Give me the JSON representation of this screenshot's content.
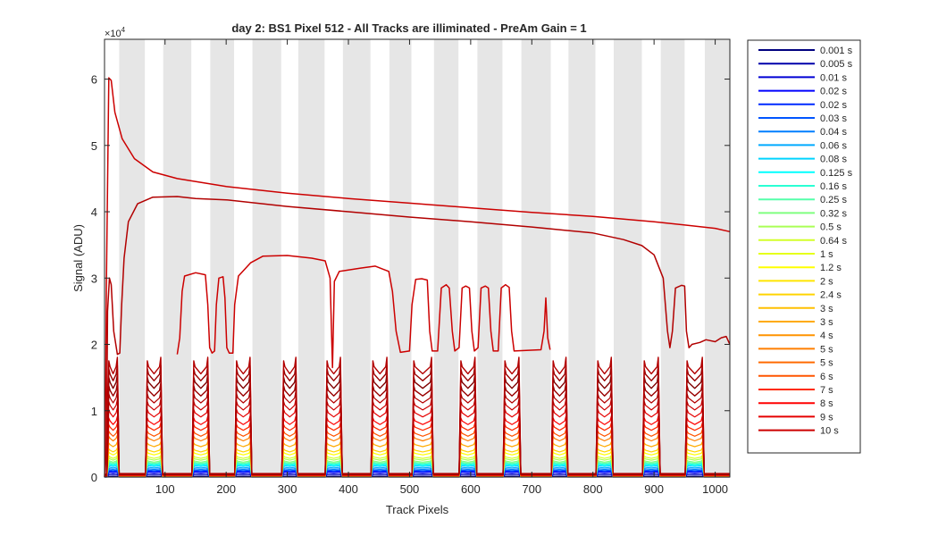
{
  "chart_data": {
    "type": "line",
    "title": "day 2: BS1  Pixel 512 - All Tracks are illiminated - PreAm Gain = 1",
    "xlabel": "Track Pixels",
    "ylabel": "Signal (ADU)",
    "y_exponent_label": "×10",
    "y_exponent": "4",
    "xlim": [
      1,
      1024
    ],
    "ylim": [
      0,
      66000
    ],
    "x_ticks": [
      100,
      200,
      300,
      400,
      500,
      600,
      700,
      800,
      900,
      1000
    ],
    "y_ticks": [
      0,
      1,
      2,
      3,
      4,
      5,
      6
    ],
    "y_tick_labels": [
      "0",
      "1",
      "2",
      "3",
      "4",
      "5",
      "6"
    ],
    "grid": false,
    "legend_position": "outside-right",
    "shaded_bands": [
      [
        25,
        67
      ],
      [
        97,
        143
      ],
      [
        174,
        213
      ],
      [
        243,
        290
      ],
      [
        318,
        361
      ],
      [
        391,
        436
      ],
      [
        467,
        503
      ],
      [
        540,
        580
      ],
      [
        611,
        652
      ],
      [
        683,
        731
      ],
      [
        760,
        804
      ],
      [
        834,
        880
      ],
      [
        911,
        950
      ],
      [
        983,
        1024
      ]
    ],
    "tracks": [
      {
        "start": 5,
        "end": 25
      },
      {
        "start": 68,
        "end": 96
      },
      {
        "start": 144,
        "end": 173
      },
      {
        "start": 214,
        "end": 242
      },
      {
        "start": 291,
        "end": 317
      },
      {
        "start": 362,
        "end": 390
      },
      {
        "start": 437,
        "end": 466
      },
      {
        "start": 504,
        "end": 539
      },
      {
        "start": 581,
        "end": 610
      },
      {
        "start": 653,
        "end": 682
      },
      {
        "start": 732,
        "end": 759
      },
      {
        "start": 805,
        "end": 833
      },
      {
        "start": 881,
        "end": 910
      },
      {
        "start": 951,
        "end": 982
      }
    ],
    "series": [
      {
        "name": "0.001 s",
        "color": "#00007f",
        "plateau": 60
      },
      {
        "name": "0.005 s",
        "color": "#0000aa",
        "plateau": 300
      },
      {
        "name": "0.01 s",
        "color": "#0000d4",
        "plateau": 550
      },
      {
        "name": "0.02 s",
        "color": "#0000ff",
        "plateau": 800
      },
      {
        "name": "0.02 s",
        "color": "#002aff",
        "plateau": 950
      },
      {
        "name": "0.03 s",
        "color": "#0055ff",
        "plateau": 1100
      },
      {
        "name": "0.04 s",
        "color": "#007fff",
        "plateau": 1300
      },
      {
        "name": "0.06 s",
        "color": "#00aaff",
        "plateau": 1550
      },
      {
        "name": "0.08 s",
        "color": "#00d4ff",
        "plateau": 1800
      },
      {
        "name": "0.125 s",
        "color": "#00ffff",
        "plateau": 2000
      },
      {
        "name": "0.16 s",
        "color": "#2affd4",
        "plateau": 2150
      },
      {
        "name": "0.25 s",
        "color": "#55ffaa",
        "plateau": 2350
      },
      {
        "name": "0.32 s",
        "color": "#7fff7f",
        "plateau": 2550
      },
      {
        "name": "0.5 s",
        "color": "#aaff55",
        "plateau": 2900
      },
      {
        "name": "0.64 s",
        "color": "#d4ff2a",
        "plateau": 3200
      },
      {
        "name": "1 s",
        "color": "#ffff00",
        "plateau": 3800
      },
      {
        "name": "1.2 s",
        "color": "#ffd400",
        "plateau": 4300
      },
      {
        "name": "2 s",
        "color": "#ffaa00",
        "plateau": 5200
      },
      {
        "name": "2.4 s",
        "color": "#ff7f00",
        "plateau": 6200
      },
      {
        "name": "3 s",
        "color": "#ff5500",
        "plateau": 7000
      },
      {
        "name": "3 s",
        "color": "#ff2a00",
        "plateau": 8000
      },
      {
        "name": "4 s",
        "color": "#ff0000",
        "plateau": 9000
      },
      {
        "name": "5 s",
        "color": "#e50000",
        "plateau": 10300
      },
      {
        "name": "5 s",
        "color": "#cc0000",
        "plateau": 11500
      },
      {
        "name": "6 s",
        "color": "#b20000",
        "plateau": 12700
      },
      {
        "name": "7 s",
        "color": "#990000",
        "plateau": 13900
      },
      {
        "name": "8 s",
        "color": "#7f0000",
        "plateau": 15200
      },
      {
        "name": "9 s",
        "color": "#990000",
        "plateau": 16500
      },
      {
        "name": "10 s",
        "color": "#b20000",
        "plateau": 17700
      }
    ],
    "legend_colors": [
      "#00007f",
      "#0000aa",
      "#0000d4",
      "#0000ff",
      "#002aff",
      "#0055ff",
      "#007fff",
      "#00aaff",
      "#00d4ff",
      "#00ffff",
      "#2affd4",
      "#55ffaa",
      "#7fff7f",
      "#aaff55",
      "#d4ff2a",
      "#e5ff1a",
      "#ffff00",
      "#ffe500",
      "#ffd400",
      "#ffbf00",
      "#ffaa00",
      "#ff9400",
      "#ff7f00",
      "#ff6a00",
      "#ff5500",
      "#ff2a00",
      "#ff0000",
      "#e50000",
      "#cc0000"
    ],
    "saturated_curves": [
      {
        "name": "9 s",
        "color": "#cc0000",
        "points": [
          [
            1,
            0
          ],
          [
            2,
            2000
          ],
          [
            4,
            29000
          ],
          [
            8,
            60200
          ],
          [
            12,
            59800
          ],
          [
            18,
            55000
          ],
          [
            30,
            51000
          ],
          [
            50,
            48000
          ],
          [
            80,
            46000
          ],
          [
            120,
            45000
          ],
          [
            200,
            43800
          ],
          [
            300,
            42800
          ],
          [
            400,
            42000
          ],
          [
            500,
            41300
          ],
          [
            600,
            40600
          ],
          [
            700,
            39900
          ],
          [
            800,
            39300
          ],
          [
            900,
            38500
          ],
          [
            1000,
            37500
          ],
          [
            1024,
            37000
          ]
        ]
      },
      {
        "name": "10 s",
        "color": "#b20000",
        "points": [
          [
            4,
            0
          ],
          [
            6,
            25000
          ],
          [
            9,
            30000
          ],
          [
            12,
            29000
          ],
          [
            16,
            22000
          ],
          [
            22,
            18500
          ],
          [
            26,
            18700
          ],
          [
            29,
            26000
          ],
          [
            33,
            33000
          ],
          [
            40,
            38500
          ],
          [
            55,
            41200
          ],
          [
            80,
            42200
          ],
          [
            120,
            42300
          ],
          [
            150,
            42000
          ],
          [
            200,
            41800
          ],
          [
            300,
            40800
          ],
          [
            400,
            40000
          ],
          [
            500,
            39200
          ],
          [
            600,
            38500
          ],
          [
            700,
            37700
          ],
          [
            800,
            36800
          ],
          [
            850,
            35800
          ],
          [
            880,
            34900
          ],
          [
            900,
            33500
          ],
          [
            915,
            30000
          ],
          [
            922,
            22000
          ],
          [
            926,
            19500
          ],
          [
            930,
            22000
          ],
          [
            935,
            28500
          ],
          [
            945,
            28900
          ],
          [
            950,
            28800
          ],
          [
            953,
            22000
          ],
          [
            957,
            19500
          ],
          [
            962,
            20000
          ],
          [
            975,
            20300
          ],
          [
            985,
            20700
          ],
          [
            1000,
            20400
          ],
          [
            1010,
            21000
          ],
          [
            1018,
            21200
          ],
          [
            1024,
            20000
          ]
        ]
      },
      {
        "name": "8 s",
        "color": "#cc0000",
        "points": [
          [
            120,
            18500
          ],
          [
            124,
            21000
          ],
          [
            128,
            28000
          ],
          [
            132,
            30300
          ],
          [
            150,
            30800
          ],
          [
            166,
            30500
          ],
          [
            170,
            26000
          ],
          [
            173,
            19500
          ],
          [
            177,
            18700
          ],
          [
            181,
            19000
          ],
          [
            184,
            26000
          ],
          [
            188,
            30000
          ],
          [
            195,
            30200
          ],
          [
            198,
            27000
          ],
          [
            201,
            19500
          ],
          [
            205,
            18700
          ],
          [
            211,
            18700
          ],
          [
            214,
            26000
          ],
          [
            220,
            30300
          ],
          [
            240,
            32300
          ],
          [
            260,
            33300
          ],
          [
            300,
            33400
          ],
          [
            340,
            33000
          ],
          [
            362,
            32600
          ],
          [
            370,
            30000
          ],
          [
            374,
            16500
          ],
          [
            377,
            29500
          ],
          [
            385,
            31000
          ],
          [
            420,
            31500
          ],
          [
            444,
            31800
          ],
          [
            455,
            31400
          ],
          [
            466,
            31000
          ],
          [
            472,
            28000
          ],
          [
            478,
            22000
          ],
          [
            485,
            18800
          ],
          [
            500,
            19000
          ],
          [
            504,
            26000
          ],
          [
            510,
            29800
          ],
          [
            520,
            29900
          ],
          [
            529,
            29700
          ],
          [
            533,
            22000
          ],
          [
            537,
            19000
          ],
          [
            546,
            19000
          ],
          [
            552,
            28500
          ],
          [
            560,
            29000
          ],
          [
            565,
            28500
          ],
          [
            570,
            22000
          ],
          [
            574,
            19000
          ],
          [
            581,
            19500
          ],
          [
            586,
            28500
          ],
          [
            592,
            28800
          ],
          [
            598,
            28500
          ],
          [
            602,
            22000
          ],
          [
            606,
            19000
          ],
          [
            612,
            19500
          ],
          [
            617,
            28500
          ],
          [
            624,
            28800
          ],
          [
            629,
            28500
          ],
          [
            633,
            22000
          ],
          [
            637,
            19000
          ],
          [
            645,
            19000
          ],
          [
            650,
            28500
          ],
          [
            657,
            29000
          ],
          [
            663,
            28600
          ],
          [
            667,
            22000
          ],
          [
            671,
            19000
          ],
          [
            715,
            19200
          ],
          [
            720,
            22000
          ],
          [
            723,
            27000
          ],
          [
            726,
            21000
          ],
          [
            730,
            19200
          ]
        ]
      }
    ]
  },
  "legend": {
    "entries": [
      "0.001 s",
      "0.005 s",
      "0.01 s",
      "0.02 s",
      "0.02 s",
      "0.03 s",
      "0.04 s",
      "0.06 s",
      "0.08 s",
      "0.125 s",
      "0.16 s",
      "0.25 s",
      "0.32 s",
      "0.5 s",
      "0.64 s",
      "1 s",
      "1.2 s",
      "2 s",
      "2.4 s",
      "3 s",
      "3 s",
      "4 s",
      "5 s",
      "5 s",
      "6 s",
      "7 s",
      "8 s",
      "9 s",
      "10 s"
    ]
  }
}
